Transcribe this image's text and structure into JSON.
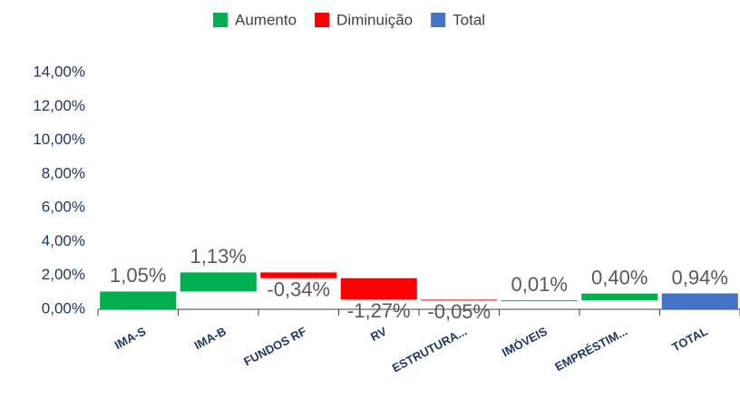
{
  "chart_data": {
    "type": "waterfall",
    "legend": [
      {
        "name": "Aumento",
        "color": "#00b050"
      },
      {
        "name": "Diminuição",
        "color": "#ff0000"
      },
      {
        "name": "Total",
        "color": "#4472c4"
      }
    ],
    "categories": [
      "IMA-S",
      "IMA-B",
      "FUNDOS RF",
      "RV",
      "ESTRUTURA...",
      "IMÓVEIS",
      "EMPRÉSTIM...",
      "TOTAL"
    ],
    "values": [
      1.05,
      1.13,
      -0.34,
      -1.27,
      -0.05,
      0.01,
      0.4,
      0.94
    ],
    "value_labels": [
      "1,05%",
      "1,13%",
      "-0,34%",
      "-1,27%",
      "-0,05%",
      "0,01%",
      "0,40%",
      "0,94%"
    ],
    "is_total": [
      false,
      false,
      false,
      false,
      false,
      false,
      false,
      true
    ],
    "ylim": [
      0,
      14
    ],
    "yticks": [
      {
        "value": 0,
        "label": "0,00%"
      },
      {
        "value": 2,
        "label": "2,00%"
      },
      {
        "value": 4,
        "label": "4,00%"
      },
      {
        "value": 6,
        "label": "6,00%"
      },
      {
        "value": 8,
        "label": "8,00%"
      },
      {
        "value": 10,
        "label": "10,00%"
      },
      {
        "value": 12,
        "label": "12,00%"
      },
      {
        "value": 14,
        "label": "14,00%"
      }
    ],
    "grid": false
  }
}
